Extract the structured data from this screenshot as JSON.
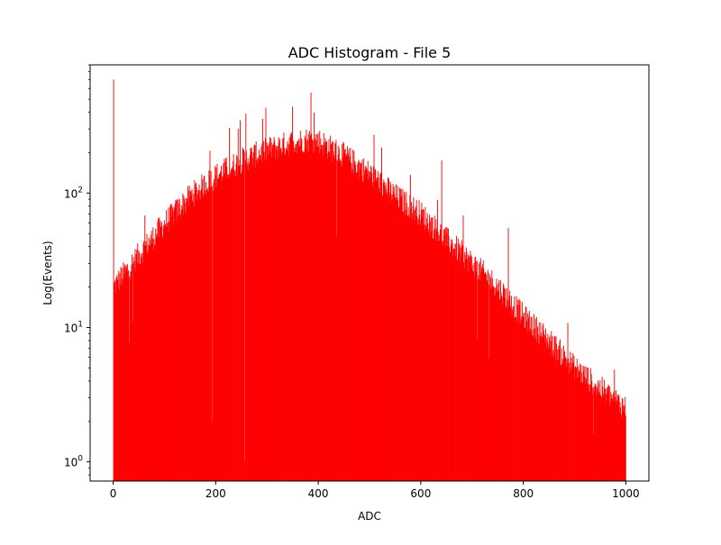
{
  "chart_data": {
    "type": "bar",
    "title": "ADC Histogram - File 5",
    "xlabel": "ADC",
    "ylabel": "Log(Events)",
    "yscale": "log",
    "xlim": [
      -45,
      1045
    ],
    "ylim": [
      0.72,
      900
    ],
    "x_ticks": [
      {
        "value": 0,
        "label": "0"
      },
      {
        "value": 200,
        "label": "200"
      },
      {
        "value": 400,
        "label": "400"
      },
      {
        "value": 600,
        "label": "600"
      },
      {
        "value": 800,
        "label": "800"
      },
      {
        "value": 1000,
        "label": "1000"
      }
    ],
    "y_ticks": [
      {
        "value": 1,
        "label": "10^0",
        "base": "10",
        "exp": "0"
      },
      {
        "value": 10,
        "label": "10^1",
        "base": "10",
        "exp": "1"
      },
      {
        "value": 100,
        "label": "10^2",
        "base": "10",
        "exp": "2"
      }
    ],
    "grid": false,
    "legend": false,
    "bar_color": "#ff0000",
    "bin_width": 1,
    "bins_range": [
      0,
      1000
    ],
    "envelope_points": [
      [
        0,
        20
      ],
      [
        50,
        35
      ],
      [
        100,
        60
      ],
      [
        150,
        95
      ],
      [
        200,
        135
      ],
      [
        250,
        175
      ],
      [
        300,
        210
      ],
      [
        350,
        240
      ],
      [
        380,
        250
      ],
      [
        400,
        245
      ],
      [
        450,
        190
      ],
      [
        500,
        140
      ],
      [
        550,
        95
      ],
      [
        600,
        70
      ],
      [
        650,
        45
      ],
      [
        700,
        30
      ],
      [
        750,
        20
      ],
      [
        800,
        12
      ],
      [
        850,
        8
      ],
      [
        900,
        5
      ],
      [
        950,
        3.5
      ],
      [
        1000,
        2.5
      ]
    ],
    "notable_bins": [
      {
        "x": 0,
        "y": 700
      },
      {
        "x": 193,
        "y": 2
      },
      {
        "x": 256,
        "y": 1
      },
      {
        "x": 258,
        "y": 390
      },
      {
        "x": 385,
        "y": 560
      },
      {
        "x": 640,
        "y": 175
      },
      {
        "x": 770,
        "y": 55
      }
    ]
  }
}
